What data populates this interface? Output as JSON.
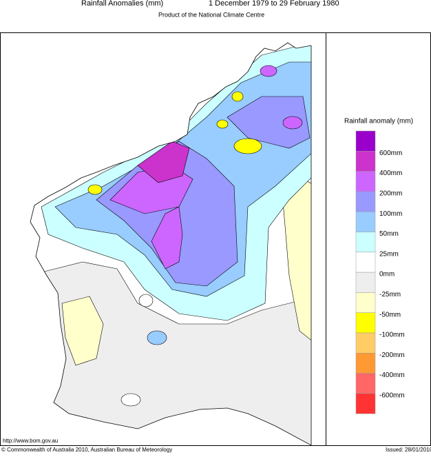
{
  "header": {
    "title": "Rainfall Anomalies (mm)",
    "period": "1 December 1979 to 29 February 1980",
    "subtitle": "Product of the National Climate Centre"
  },
  "legend": {
    "title": "Rainfall anomaly (mm)",
    "colors": [
      "#9900cc",
      "#cc33cc",
      "#cc66ff",
      "#9999ff",
      "#99ccff",
      "#ccffff",
      "#ffffff",
      "#eeeeee",
      "#ffffcc",
      "#ffff00",
      "#ffcc66",
      "#ff9933",
      "#ff6666",
      "#ff3333"
    ],
    "labels": [
      "600mm",
      "400mm",
      "200mm",
      "100mm",
      "50mm",
      "25mm",
      "0mm",
      "-25mm",
      "-50mm",
      "-100mm",
      "-200mm",
      "-400mm",
      "-600mm"
    ]
  },
  "footer": {
    "url": "http://www.bom.gov.au",
    "copyright": "© Commonwealth of Australia 2010, Australian Bureau of Meteorology",
    "issued": "Issued: 28/01/2010"
  }
}
